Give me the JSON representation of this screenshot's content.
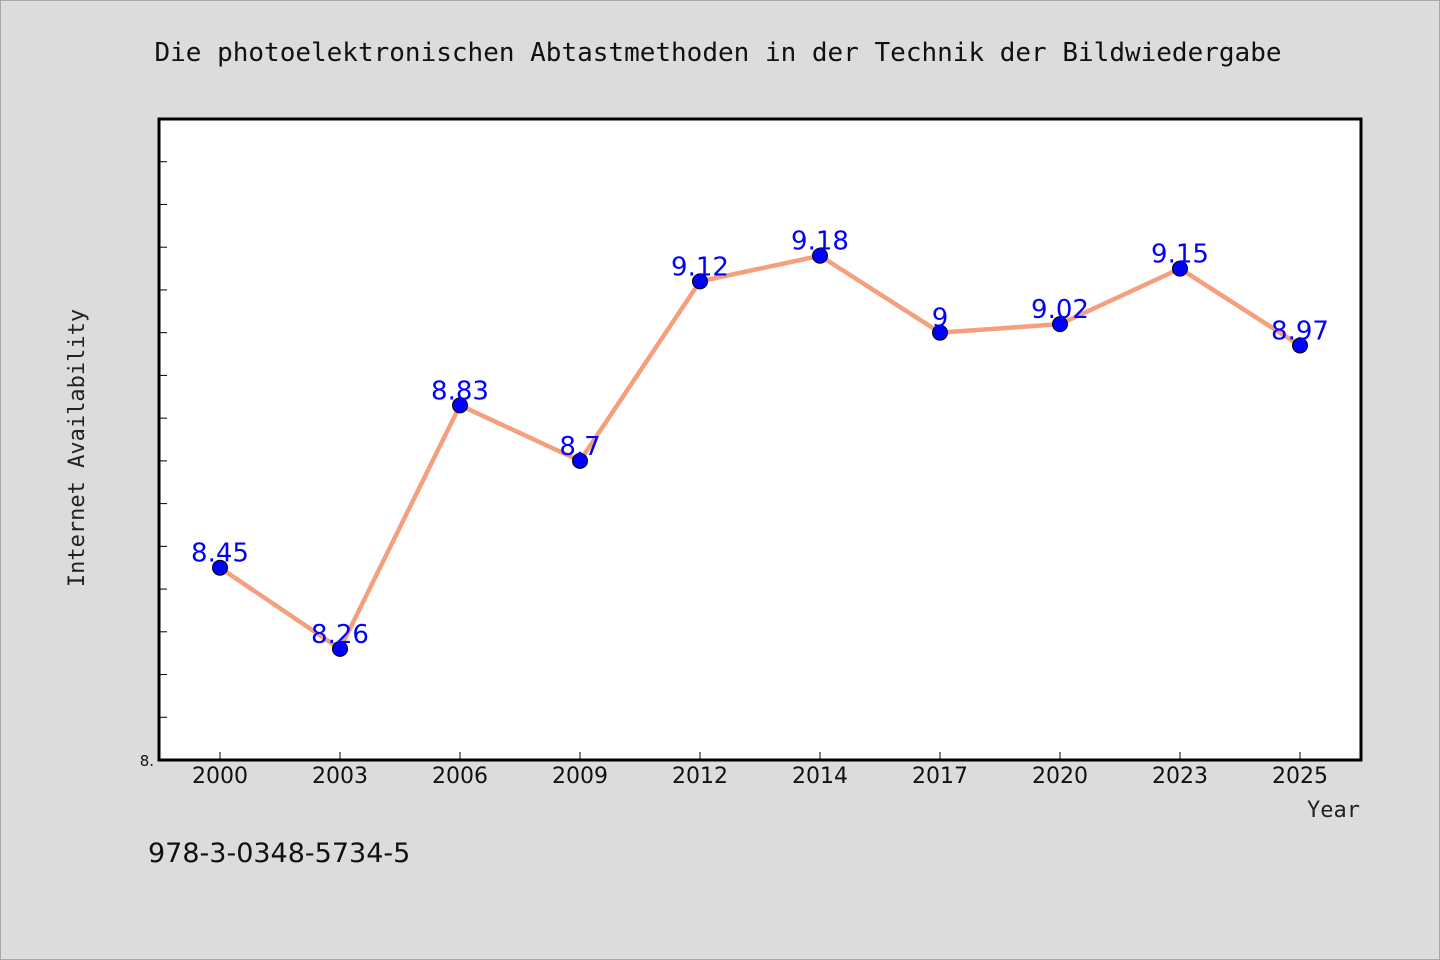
{
  "chart_data": {
    "type": "line",
    "title": "Die photoelektronischen Abtastmethoden in der Technik der Bildwiedergabe",
    "xlabel": "Year",
    "ylabel": "Internet Availability",
    "categories": [
      "2000",
      "2003",
      "2006",
      "2009",
      "2012",
      "2014",
      "2017",
      "2020",
      "2023",
      "2025"
    ],
    "series": [
      {
        "values": [
          8.45,
          8.26,
          8.83,
          8.7,
          9.12,
          9.18,
          9.0,
          9.02,
          9.15,
          8.97
        ],
        "labels": [
          "8.45",
          "8.26",
          "8.83",
          "8.7",
          "9.12",
          "9.18",
          "9",
          "9.02",
          "9.15",
          "8.97"
        ],
        "line_color": "#f4a07f",
        "marker_color": "#0000ff"
      }
    ],
    "ylim": [
      8.0,
      9.5
    ],
    "y_minor_tick_step": 0.1,
    "y_tick_labels": [
      "8."
    ],
    "grid": false,
    "legend": "none"
  },
  "footer": {
    "isbn": "978-3-0348-5734-5"
  }
}
